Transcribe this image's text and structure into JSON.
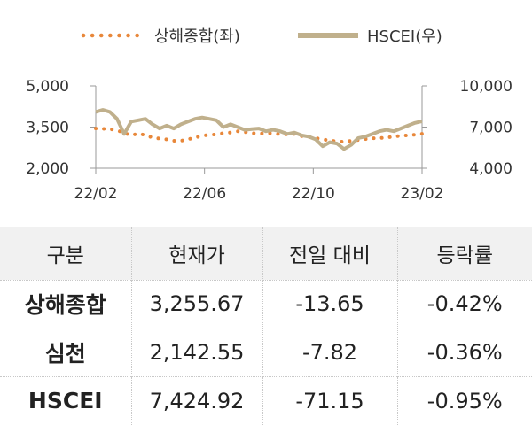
{
  "chart_data": {
    "type": "line",
    "title": "",
    "legend": {
      "placement": "top-center"
    },
    "x_ticks": [
      "22/02",
      "22/06",
      "22/10",
      "23/02"
    ],
    "y_left": {
      "ticks": [
        "5,000",
        "3,500",
        "2,000"
      ],
      "ylim": [
        2000,
        5000
      ]
    },
    "y_right": {
      "ticks": [
        "10,000",
        "7,000",
        "4,000"
      ],
      "ylim": [
        4000,
        10000
      ]
    },
    "series": [
      {
        "name": "상해종합(좌)",
        "axis": "left",
        "style": "dotted",
        "color": "#e8873a",
        "values": [
          3450,
          3440,
          3430,
          3380,
          3290,
          3190,
          3270,
          3200,
          3120,
          3080,
          3050,
          3000,
          3000,
          3050,
          3120,
          3180,
          3220,
          3230,
          3280,
          3300,
          3350,
          3320,
          3280,
          3260,
          3270,
          3280,
          3230,
          3230,
          3250,
          3170,
          3140,
          3100,
          3050,
          3010,
          2980,
          2960,
          3000,
          3030,
          3060,
          3090,
          3100,
          3120,
          3150,
          3180,
          3200,
          3220,
          3255
        ]
      },
      {
        "name": "HSCEI(우)",
        "axis": "right",
        "style": "solid",
        "color": "#c0b08c",
        "values": [
          8100,
          8250,
          8100,
          7600,
          6500,
          7400,
          7500,
          7600,
          7200,
          6900,
          7100,
          6900,
          7200,
          7400,
          7600,
          7700,
          7600,
          7500,
          7000,
          7200,
          7000,
          6800,
          6850,
          6900,
          6700,
          6800,
          6700,
          6500,
          6600,
          6400,
          6300,
          6100,
          5600,
          5900,
          5800,
          5400,
          5700,
          6200,
          6300,
          6500,
          6700,
          6800,
          6700,
          6900,
          7100,
          7300,
          7425
        ]
      }
    ]
  },
  "table": {
    "headers": [
      "구분",
      "현재가",
      "전일 대비",
      "등락률"
    ],
    "rows": [
      {
        "name": "상해종합",
        "price": "3,255.67",
        "change": "-13.65",
        "pct": "-0.42%"
      },
      {
        "name": "심천",
        "price": "2,142.55",
        "change": "-7.82",
        "pct": "-0.36%"
      },
      {
        "name": "HSCEI",
        "price": "7,424.92",
        "change": "-71.15",
        "pct": "-0.95%"
      }
    ]
  }
}
